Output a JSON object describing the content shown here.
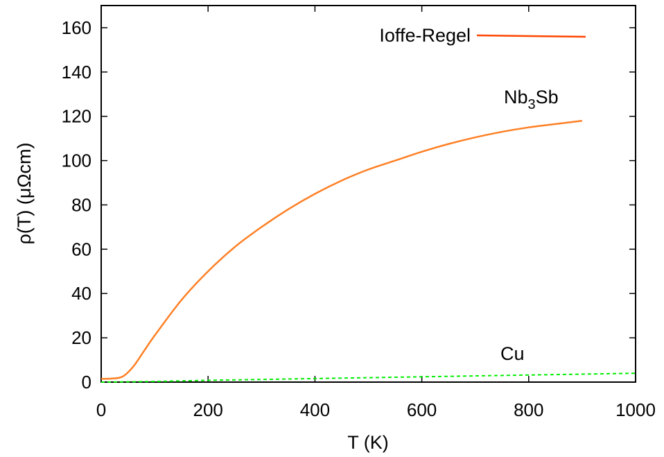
{
  "chart_data": {
    "type": "line",
    "xlabel": "T (K)",
    "ylabel": "ρ(T) (μΩcm)",
    "xlim": [
      0,
      1000
    ],
    "ylim": [
      0,
      170
    ],
    "x_ticks": [
      0,
      200,
      400,
      600,
      800,
      1000
    ],
    "y_ticks": [
      0,
      20,
      40,
      60,
      80,
      100,
      120,
      140,
      160
    ],
    "x_tick_labels": [
      "0",
      "200",
      "400",
      "600",
      "800",
      "1000"
    ],
    "y_tick_labels": [
      "0",
      "20",
      "40",
      "60",
      "80",
      "100",
      "120",
      "140",
      "160"
    ],
    "grid": false,
    "legend": {
      "position": "top-right",
      "entries": [
        {
          "label": "Ioffe-Regel",
          "color": "#ff4500",
          "style": "solid"
        }
      ]
    },
    "series": [
      {
        "name": "Ioffe-Regel",
        "color": "#ff4500",
        "style": "solid",
        "x": [
          700,
          900
        ],
        "y": [
          156,
          156
        ]
      },
      {
        "name": "Nb3Sb",
        "color": "#ff7f24",
        "style": "solid",
        "x": [
          0,
          20,
          40,
          60,
          80,
          100,
          150,
          200,
          250,
          300,
          350,
          400,
          450,
          500,
          550,
          600,
          650,
          700,
          750,
          800,
          850,
          900
        ],
        "y": [
          1.5,
          1.6,
          2.5,
          7,
          14,
          21,
          37,
          50,
          61,
          70,
          78,
          85,
          91,
          96,
          100,
          104,
          107.5,
          110.5,
          113,
          115,
          116.5,
          118
        ]
      },
      {
        "name": "Cu",
        "color": "#00ee00",
        "style": "dashed",
        "x": [
          0,
          100,
          200,
          300,
          400,
          500,
          600,
          700,
          800,
          900,
          1000
        ],
        "y": [
          0,
          0.3,
          0.8,
          1.2,
          1.6,
          2.0,
          2.4,
          2.8,
          3.2,
          3.6,
          4.0
        ]
      }
    ],
    "annotations": [
      {
        "text_main": "Nb",
        "text_sub": "3",
        "text_tail": "Sb",
        "series": "Nb3Sb"
      },
      {
        "text": "Cu",
        "series": "Cu"
      }
    ]
  }
}
